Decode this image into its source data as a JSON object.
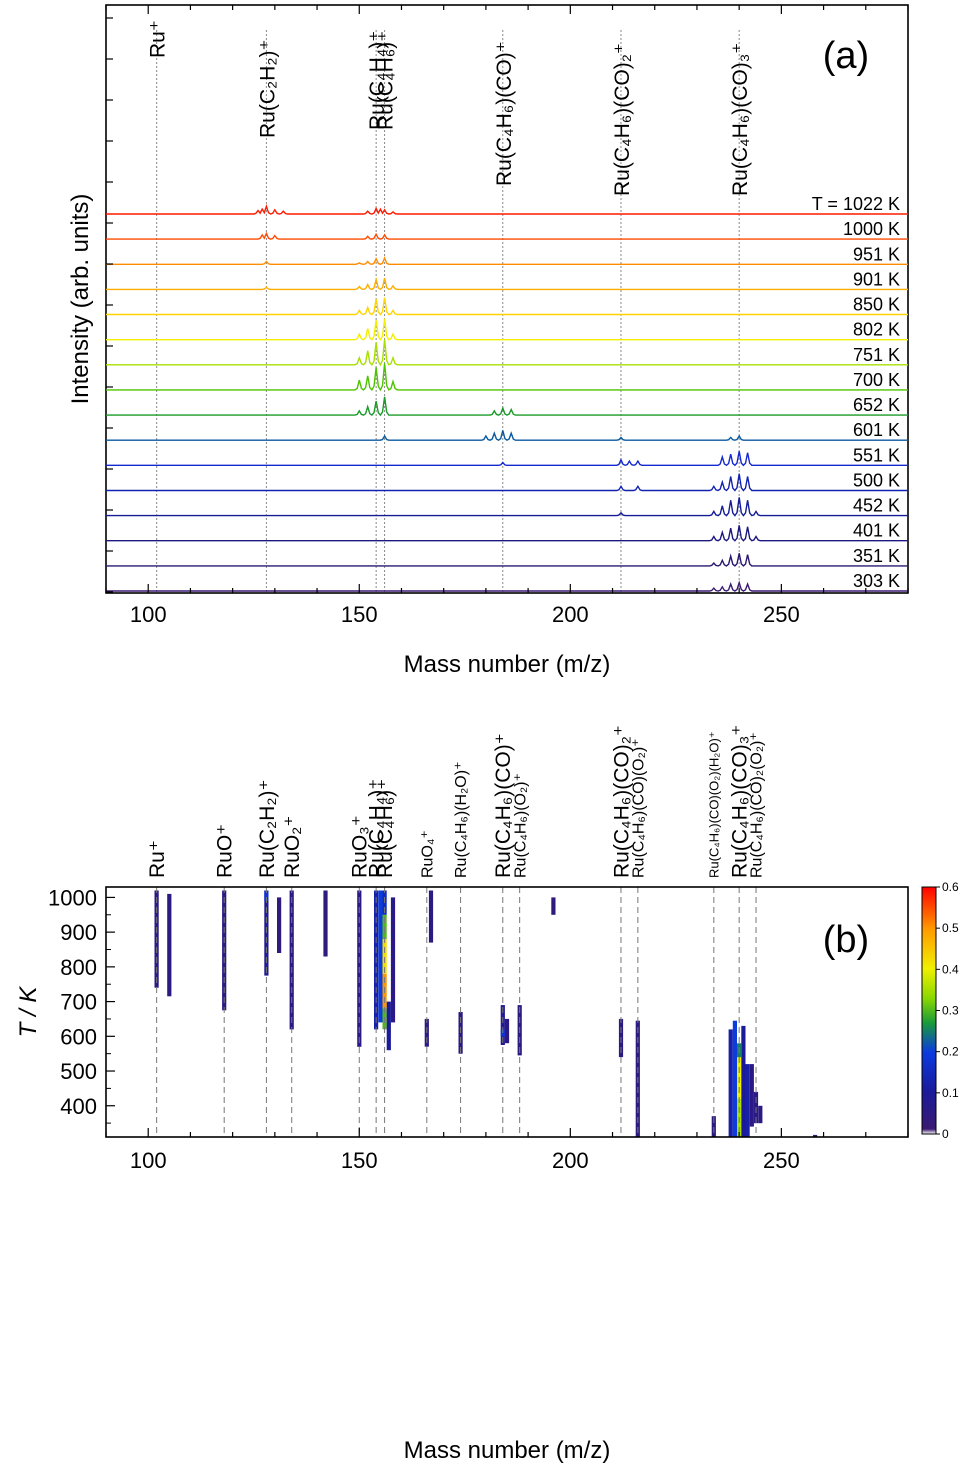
{
  "chart_data": [
    {
      "type": "line",
      "panel_label": "(a)",
      "xlabel": "Mass number (m/z)",
      "ylabel": "Intensity (arb. units)",
      "xlim": [
        90,
        280
      ],
      "x_ticks": [
        "100",
        "150",
        "200",
        "250"
      ],
      "peak_labels": [
        {
          "x": 102,
          "label": "Ru⁺"
        },
        {
          "x": 128,
          "label": "Ru(C₂H₂)⁺"
        },
        {
          "x": 154,
          "label": "Ru(C₄H₄)⁺"
        },
        {
          "x": 156,
          "label": "Ru(C₄H₆)⁺"
        },
        {
          "x": 184,
          "label": "Ru(C₄H₆)(CO)⁺"
        },
        {
          "x": 212,
          "label": "Ru(C₄H₆)(CO)₂⁺"
        },
        {
          "x": 240,
          "label": "Ru(C₄H₆)(CO)₃⁺"
        }
      ],
      "temperature_prefix": "T = ",
      "series": [
        {
          "name": "1022 K",
          "color": "#ff1a00",
          "peaks": [
            [
              128,
              0.55
            ],
            [
              127,
              0.35
            ],
            [
              126,
              0.25
            ],
            [
              130,
              0.3
            ],
            [
              132,
              0.2
            ],
            [
              154,
              0.4
            ],
            [
              155,
              0.35
            ],
            [
              156,
              0.3
            ],
            [
              152,
              0.2
            ],
            [
              158,
              0.15
            ]
          ]
        },
        {
          "name": "1000 K",
          "color": "#ff4a00",
          "peaks": [
            [
              128,
              0.4
            ],
            [
              127,
              0.3
            ],
            [
              130,
              0.25
            ],
            [
              154,
              0.35
            ],
            [
              156,
              0.3
            ],
            [
              152,
              0.2
            ]
          ]
        },
        {
          "name": "951 K",
          "color": "#ff8c00",
          "peaks": [
            [
              128,
              0.2
            ],
            [
              154,
              0.4
            ],
            [
              156,
              0.45
            ],
            [
              152,
              0.2
            ],
            [
              150,
              0.1
            ]
          ]
        },
        {
          "name": "901 K",
          "color": "#ffae00",
          "peaks": [
            [
              128,
              0.15
            ],
            [
              154,
              0.7
            ],
            [
              156,
              0.8
            ],
            [
              152,
              0.35
            ],
            [
              150,
              0.2
            ],
            [
              158,
              0.25
            ]
          ]
        },
        {
          "name": "850 K",
          "color": "#ffd400",
          "peaks": [
            [
              154,
              1.1
            ],
            [
              156,
              1.2
            ],
            [
              152,
              0.5
            ],
            [
              150,
              0.3
            ],
            [
              158,
              0.3
            ]
          ]
        },
        {
          "name": "802 K",
          "color": "#f2f000",
          "peaks": [
            [
              154,
              1.4
            ],
            [
              156,
              1.5
            ],
            [
              152,
              0.8
            ],
            [
              150,
              0.4
            ],
            [
              158,
              0.4
            ]
          ]
        },
        {
          "name": "751 K",
          "color": "#a8e000",
          "peaks": [
            [
              154,
              1.6
            ],
            [
              156,
              1.8
            ],
            [
              152,
              1.0
            ],
            [
              150,
              0.5
            ],
            [
              158,
              0.5
            ]
          ]
        },
        {
          "name": "700 K",
          "color": "#4cc400",
          "peaks": [
            [
              154,
              1.6
            ],
            [
              156,
              1.9
            ],
            [
              152,
              1.0
            ],
            [
              150,
              0.7
            ],
            [
              158,
              0.6
            ]
          ]
        },
        {
          "name": "652 K",
          "color": "#1a9a28",
          "peaks": [
            [
              154,
              1.0
            ],
            [
              156,
              1.3
            ],
            [
              152,
              0.6
            ],
            [
              150,
              0.3
            ],
            [
              184,
              0.5
            ],
            [
              186,
              0.4
            ],
            [
              182,
              0.3
            ]
          ]
        },
        {
          "name": "601 K",
          "color": "#0a5aa0",
          "peaks": [
            [
              156,
              0.3
            ],
            [
              184,
              0.7
            ],
            [
              186,
              0.5
            ],
            [
              182,
              0.5
            ],
            [
              180,
              0.3
            ],
            [
              212,
              0.2
            ],
            [
              240,
              0.3
            ],
            [
              238,
              0.2
            ]
          ]
        },
        {
          "name": "551 K",
          "color": "#1428d0",
          "peaks": [
            [
              184,
              0.2
            ],
            [
              212,
              0.4
            ],
            [
              214,
              0.3
            ],
            [
              216,
              0.3
            ],
            [
              238,
              0.8
            ],
            [
              240,
              1.0
            ],
            [
              242,
              0.9
            ],
            [
              236,
              0.6
            ]
          ]
        },
        {
          "name": "500 K",
          "color": "#1222b0",
          "peaks": [
            [
              212,
              0.3
            ],
            [
              216,
              0.3
            ],
            [
              238,
              1.0
            ],
            [
              240,
              1.2
            ],
            [
              242,
              1.0
            ],
            [
              236,
              0.6
            ],
            [
              234,
              0.3
            ]
          ]
        },
        {
          "name": "452 K",
          "color": "#141c98",
          "peaks": [
            [
              212,
              0.2
            ],
            [
              238,
              1.1
            ],
            [
              240,
              1.3
            ],
            [
              242,
              1.1
            ],
            [
              236,
              0.7
            ],
            [
              234,
              0.3
            ],
            [
              244,
              0.3
            ]
          ]
        },
        {
          "name": "401 K",
          "color": "#1c1880",
          "peaks": [
            [
              238,
              0.9
            ],
            [
              240,
              1.1
            ],
            [
              242,
              1.0
            ],
            [
              236,
              0.6
            ],
            [
              234,
              0.3
            ],
            [
              244,
              0.3
            ]
          ]
        },
        {
          "name": "351 K",
          "color": "#2a1870",
          "peaks": [
            [
              238,
              0.7
            ],
            [
              240,
              0.9
            ],
            [
              242,
              0.8
            ],
            [
              236,
              0.4
            ],
            [
              234,
              0.2
            ]
          ]
        },
        {
          "name": "303 K",
          "color": "#3a1a72",
          "peaks": [
            [
              238,
              0.5
            ],
            [
              240,
              0.6
            ],
            [
              242,
              0.5
            ],
            [
              236,
              0.3
            ],
            [
              234,
              0.2
            ]
          ]
        }
      ]
    },
    {
      "type": "heatmap",
      "panel_label": "(b)",
      "xlabel": "Mass number (m/z)",
      "ylabel": "T / K",
      "xlim": [
        90,
        280
      ],
      "ylim": [
        310,
        1030
      ],
      "x_ticks": [
        "100",
        "150",
        "200",
        "250"
      ],
      "y_ticks": [
        "400",
        "500",
        "600",
        "700",
        "800",
        "900",
        "1000"
      ],
      "colorbar": {
        "min": 0,
        "max": 0.6,
        "ticks": [
          "0",
          "0.1",
          "0.2",
          "0.3",
          "0.4",
          "0.5",
          "0.6"
        ]
      },
      "peak_labels": [
        {
          "x": 102,
          "label": "Ru⁺",
          "size": "large"
        },
        {
          "x": 118,
          "label": "RuO⁺",
          "size": "large"
        },
        {
          "x": 128,
          "label": "Ru(C₂H₂)⁺",
          "size": "large"
        },
        {
          "x": 134,
          "label": "RuO₂⁺",
          "size": "large"
        },
        {
          "x": 150,
          "label": "RuO₃⁺",
          "size": "large"
        },
        {
          "x": 154,
          "label": "Ru(C₄H₄)⁺",
          "size": "large"
        },
        {
          "x": 156,
          "label": "Ru(C₄H₆)⁺",
          "size": "large"
        },
        {
          "x": 166,
          "label": "RuO₄⁺",
          "size": "small"
        },
        {
          "x": 174,
          "label": "Ru(C₄H₆)(H₂O)⁺",
          "size": "small"
        },
        {
          "x": 184,
          "label": "Ru(C₄H₆)(CO)⁺",
          "size": "large"
        },
        {
          "x": 188,
          "label": "Ru(C₄H₆)(O₂)⁺",
          "size": "small"
        },
        {
          "x": 212,
          "label": "Ru(C₄H₆)(CO)₂⁺",
          "size": "large"
        },
        {
          "x": 216,
          "label": "Ru(C₄H₆)(CO)(O₂)⁺",
          "size": "small"
        },
        {
          "x": 234,
          "label": "Ru(C₄H₆)(CO)(O₂)(H₂O)⁺",
          "size": "tiny"
        },
        {
          "x": 240,
          "label": "Ru(C₄H₆)(CO)₃⁺",
          "size": "large"
        },
        {
          "x": 244,
          "label": "Ru(C₄H₆)(CO)₂(O₂)⁺",
          "size": "small"
        }
      ],
      "streaks": [
        {
          "x": 102,
          "t": [
            740,
            1020
          ],
          "v": 0.05
        },
        {
          "x": 105,
          "t": [
            715,
            1010
          ],
          "v": 0.05
        },
        {
          "x": 118,
          "t": [
            675,
            1020
          ],
          "v": 0.05
        },
        {
          "x": 128,
          "t": [
            775,
            1020
          ],
          "v": 0.08
        },
        {
          "x": 128,
          "t": [
            990,
            1020
          ],
          "v": 0.18
        },
        {
          "x": 134,
          "t": [
            620,
            1020
          ],
          "v": 0.06
        },
        {
          "x": 131,
          "t": [
            840,
            1000
          ],
          "v": 0.04
        },
        {
          "x": 142,
          "t": [
            830,
            1020
          ],
          "v": 0.04
        },
        {
          "x": 150,
          "t": [
            570,
            1020
          ],
          "v": 0.06
        },
        {
          "x": 154,
          "t": [
            620,
            1020
          ],
          "v": 0.12
        },
        {
          "x": 155,
          "t": [
            640,
            1020
          ],
          "v": 0.2
        },
        {
          "x": 156,
          "t": [
            680,
            780
          ],
          "v": 0.5
        },
        {
          "x": 156,
          "t": [
            780,
            880
          ],
          "v": 0.42
        },
        {
          "x": 156,
          "t": [
            880,
            950
          ],
          "v": 0.3
        },
        {
          "x": 156,
          "t": [
            950,
            1020
          ],
          "v": 0.15
        },
        {
          "x": 156,
          "t": [
            620,
            680
          ],
          "v": 0.3
        },
        {
          "x": 157,
          "t": [
            560,
            700
          ],
          "v": 0.1
        },
        {
          "x": 158,
          "t": [
            640,
            1000
          ],
          "v": 0.06
        },
        {
          "x": 166,
          "t": [
            570,
            650
          ],
          "v": 0.05
        },
        {
          "x": 167,
          "t": [
            870,
            1020
          ],
          "v": 0.05
        },
        {
          "x": 174,
          "t": [
            550,
            670
          ],
          "v": 0.05
        },
        {
          "x": 184,
          "t": [
            575,
            690
          ],
          "v": 0.08
        },
        {
          "x": 184,
          "t": [
            600,
            620
          ],
          "v": 0.18
        },
        {
          "x": 185,
          "t": [
            580,
            650
          ],
          "v": 0.06
        },
        {
          "x": 188,
          "t": [
            545,
            690
          ],
          "v": 0.05
        },
        {
          "x": 196,
          "t": [
            950,
            1000
          ],
          "v": 0.04
        },
        {
          "x": 212,
          "t": [
            540,
            650
          ],
          "v": 0.05
        },
        {
          "x": 216,
          "t": [
            310,
            645
          ],
          "v": 0.05
        },
        {
          "x": 234,
          "t": [
            310,
            370
          ],
          "v": 0.05
        },
        {
          "x": 238,
          "t": [
            310,
            620
          ],
          "v": 0.12
        },
        {
          "x": 239,
          "t": [
            310,
            645
          ],
          "v": 0.2
        },
        {
          "x": 240,
          "t": [
            420,
            540
          ],
          "v": 0.4
        },
        {
          "x": 240,
          "t": [
            310,
            420
          ],
          "v": 0.35
        },
        {
          "x": 240,
          "t": [
            540,
            580
          ],
          "v": 0.25
        },
        {
          "x": 241,
          "t": [
            310,
            630
          ],
          "v": 0.1
        },
        {
          "x": 242,
          "t": [
            310,
            520
          ],
          "v": 0.12
        },
        {
          "x": 243,
          "t": [
            340,
            520
          ],
          "v": 0.06
        },
        {
          "x": 244,
          "t": [
            350,
            440
          ],
          "v": 0.06
        },
        {
          "x": 245,
          "t": [
            350,
            400
          ],
          "v": 0.05
        },
        {
          "x": 258,
          "t": [
            310,
            316
          ],
          "v": 0.03
        }
      ]
    }
  ]
}
